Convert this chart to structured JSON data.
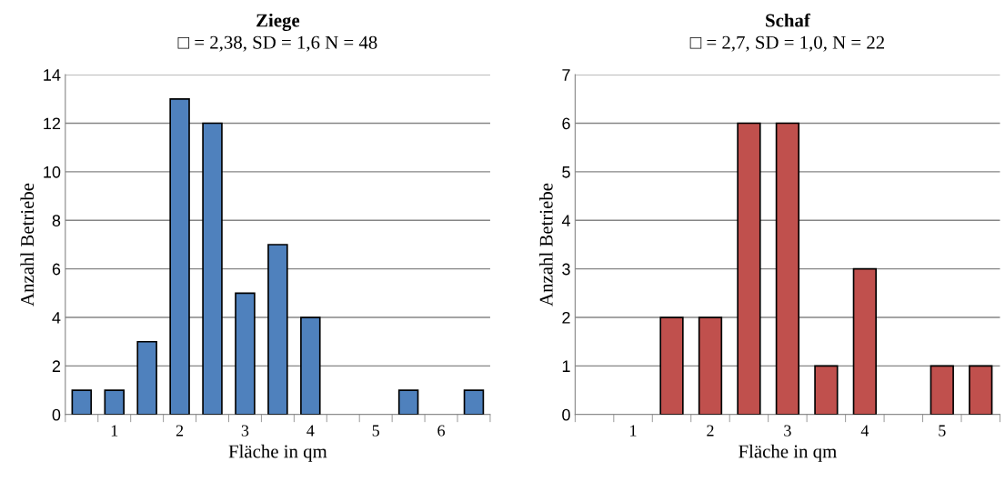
{
  "chart_data": [
    {
      "type": "bar",
      "title": "Ziege",
      "subtitle": "□ = 2,38, SD = 1,6 N = 48",
      "xlabel": "Fläche in qm",
      "ylabel": "Anzahl Betriebe",
      "categories": [
        null,
        "1",
        null,
        "2",
        null,
        "3",
        null,
        "4",
        null,
        "5",
        null,
        "6",
        null
      ],
      "values": [
        1,
        1,
        3,
        13,
        12,
        5,
        7,
        4,
        0,
        0,
        1,
        0,
        1
      ],
      "color": "#4f81bd",
      "ylim": [
        0,
        14
      ],
      "yticks": [
        0,
        2,
        4,
        6,
        8,
        10,
        12,
        14
      ],
      "grid": "y"
    },
    {
      "type": "bar",
      "title": "Schaf",
      "subtitle": "□ = 2,7, SD = 1,0, N = 22",
      "xlabel": "Fläche in qm",
      "ylabel": "Anzahl Betriebe",
      "categories": [
        null,
        "1",
        null,
        "2",
        null,
        "3",
        null,
        "4",
        null,
        "5",
        null
      ],
      "values": [
        0,
        0,
        2,
        2,
        6,
        6,
        1,
        3,
        0,
        1,
        1
      ],
      "color": "#c0504d",
      "ylim": [
        0,
        7
      ],
      "yticks": [
        0,
        1,
        2,
        3,
        4,
        5,
        6,
        7
      ],
      "grid": "y"
    }
  ]
}
